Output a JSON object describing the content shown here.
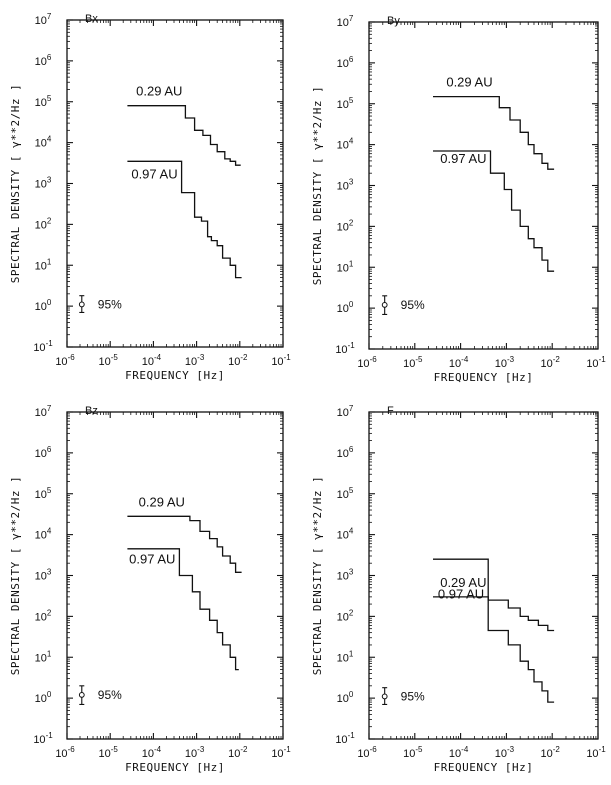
{
  "chart_data": [
    {
      "type": "line",
      "title": "Bx",
      "xlabel": "FREQUENCY [Hz]",
      "ylabel": "SPECTRAL DENSITY [ γ**2/Hz ]",
      "xscale": "log",
      "yscale": "log",
      "xlim": [
        1e-06,
        0.1
      ],
      "ylim": [
        0.1,
        10000000.0
      ],
      "error_bar_label": "95%",
      "series": [
        {
          "name": "0.29 AU",
          "x": [
            2.5e-05,
            0.00055,
            0.00055,
            0.0009,
            0.0009,
            0.0014,
            0.0014,
            0.0021,
            0.0021,
            0.003,
            0.003,
            0.0045,
            0.0045,
            0.006,
            0.006,
            0.008,
            0.008,
            0.0105
          ],
          "y": [
            80000,
            80000,
            40000,
            40000,
            20000,
            20000,
            15000,
            15000,
            9000,
            9000,
            6000,
            6000,
            4000,
            4000,
            3500,
            3500,
            2800,
            2800
          ]
        },
        {
          "name": "0.97 AU",
          "x": [
            2.5e-05,
            0.00045,
            0.00045,
            0.0009,
            0.0009,
            0.0013,
            0.0013,
            0.0018,
            0.0018,
            0.0022,
            0.0022,
            0.003,
            0.003,
            0.004,
            0.004,
            0.006,
            0.006,
            0.008,
            0.008,
            0.011
          ],
          "y": [
            3500,
            3500,
            600,
            600,
            150,
            150,
            120,
            120,
            50,
            50,
            40,
            40,
            30,
            30,
            15,
            15,
            10,
            10,
            5,
            5
          ]
        }
      ],
      "error_bar": {
        "x": 2.2e-06,
        "y": 1.1,
        "y_low": 0.7,
        "y_high": 1.8
      }
    },
    {
      "type": "line",
      "title": "By",
      "xlabel": "FREQUENCY [Hz]",
      "ylabel": "SPECTRAL DENSITY [ γ**2/Hz ]",
      "xscale": "log",
      "yscale": "log",
      "xlim": [
        1e-06,
        0.1
      ],
      "ylim": [
        0.1,
        10000000.0
      ],
      "error_bar_label": "95%",
      "series": [
        {
          "name": "0.29 AU",
          "x": [
            2.5e-05,
            0.0007,
            0.0007,
            0.0012,
            0.0012,
            0.002,
            0.002,
            0.003,
            0.003,
            0.004,
            0.004,
            0.006,
            0.006,
            0.008,
            0.008,
            0.011
          ],
          "y": [
            150000,
            150000,
            80000,
            80000,
            40000,
            40000,
            20000,
            20000,
            10000,
            10000,
            6000,
            6000,
            3500,
            3500,
            2500,
            2500
          ]
        },
        {
          "name": "0.97 AU",
          "x": [
            2.5e-05,
            0.00045,
            0.00045,
            0.0009,
            0.0009,
            0.0013,
            0.0013,
            0.002,
            0.002,
            0.003,
            0.003,
            0.004,
            0.004,
            0.006,
            0.006,
            0.008,
            0.008,
            0.011
          ],
          "y": [
            7000,
            7000,
            2000,
            2000,
            800,
            800,
            250,
            250,
            100,
            100,
            50,
            50,
            30,
            30,
            15,
            15,
            8,
            8
          ]
        }
      ],
      "error_bar": {
        "x": 2.2e-06,
        "y": 1.2,
        "y_low": 0.7,
        "y_high": 2.0
      }
    },
    {
      "type": "line",
      "title": "Bz",
      "xlabel": "FREQUENCY [Hz]",
      "ylabel": "SPECTRAL DENSITY [ γ**2/Hz ]",
      "xscale": "log",
      "yscale": "log",
      "xlim": [
        1e-06,
        0.1
      ],
      "ylim": [
        0.1,
        10000000.0
      ],
      "error_bar_label": "95%",
      "series": [
        {
          "name": "0.29 AU",
          "x": [
            2.5e-05,
            0.0007,
            0.0007,
            0.0012,
            0.0012,
            0.002,
            0.002,
            0.003,
            0.003,
            0.004,
            0.004,
            0.006,
            0.006,
            0.008,
            0.008,
            0.011
          ],
          "y": [
            28000,
            28000,
            22000,
            22000,
            12000,
            12000,
            8000,
            8000,
            5000,
            5000,
            3000,
            3000,
            2000,
            2000,
            1200,
            1200
          ]
        },
        {
          "name": "0.97 AU",
          "x": [
            2.5e-05,
            0.0004,
            0.0004,
            0.0008,
            0.0008,
            0.0012,
            0.0012,
            0.002,
            0.002,
            0.003,
            0.003,
            0.004,
            0.004,
            0.006,
            0.006,
            0.008,
            0.008,
            0.0095
          ],
          "y": [
            4500,
            4500,
            1000,
            1000,
            400,
            400,
            150,
            150,
            80,
            80,
            40,
            40,
            20,
            20,
            10,
            10,
            5,
            5
          ]
        }
      ],
      "error_bar": {
        "x": 2.2e-06,
        "y": 1.2,
        "y_low": 0.7,
        "y_high": 2.0
      }
    },
    {
      "type": "line",
      "title": "F",
      "xlabel": "FREQUENCY [Hz]",
      "ylabel": "SPECTRAL DENSITY [ γ**2/Hz ]",
      "xscale": "log",
      "yscale": "log",
      "xlim": [
        1e-06,
        0.1
      ],
      "ylim": [
        0.1,
        10000000.0
      ],
      "error_bar_label": "95%",
      "series": [
        {
          "name": "0.29 AU",
          "x": [
            2.5e-05,
            0.0004,
            0.0004,
            0.0011,
            0.0011,
            0.002,
            0.002,
            0.003,
            0.003,
            0.005,
            0.005,
            0.008,
            0.008,
            0.011
          ],
          "y": [
            300,
            300,
            250,
            250,
            160,
            160,
            100,
            100,
            80,
            80,
            60,
            60,
            45,
            45
          ]
        },
        {
          "name": "0.97 AU",
          "x": [
            2.5e-05,
            0.0004,
            0.0004,
            0.0011,
            0.0011,
            0.002,
            0.002,
            0.003,
            0.003,
            0.004,
            0.004,
            0.006,
            0.006,
            0.008,
            0.008,
            0.011
          ],
          "y": [
            2500,
            2500,
            45,
            45,
            20,
            20,
            8,
            8,
            5,
            5,
            2.5,
            2.5,
            1.5,
            1.5,
            0.8,
            0.8
          ]
        }
      ],
      "error_bar": {
        "x": 2.2e-06,
        "y": 1.1,
        "y_low": 0.7,
        "y_high": 1.8
      }
    }
  ]
}
